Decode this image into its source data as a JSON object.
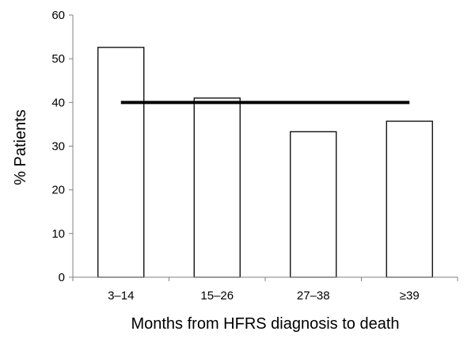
{
  "chart_data": {
    "type": "bar",
    "title": "",
    "categories": [
      "3–14",
      "15–26",
      "27–38",
      "≥39"
    ],
    "values": [
      52.6,
      41.0,
      33.3,
      35.7
    ],
    "xlabel": "Months from HFRS diagnosis to death",
    "ylabel": "% Patients",
    "ylim": [
      0,
      60
    ],
    "yticks": [
      0,
      10,
      20,
      30,
      40,
      50,
      60
    ],
    "grid": false,
    "legend": "none",
    "reference_line": {
      "value": 40
    },
    "colors": {
      "bar_fill": "#ffffff",
      "bar_stroke": "#000000",
      "axis": "#808080",
      "reference_line": "#000000"
    }
  }
}
